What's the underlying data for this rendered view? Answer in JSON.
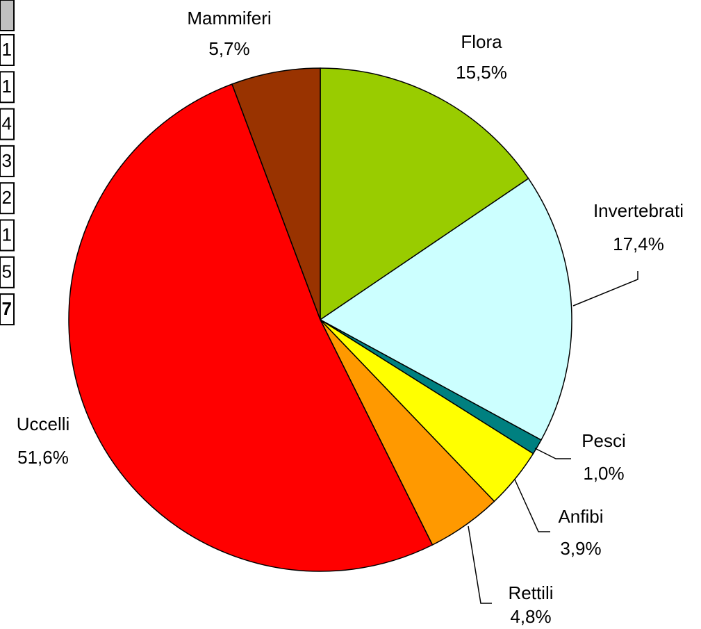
{
  "chart_data": {
    "type": "pie",
    "categories": [
      "Flora",
      "Invertebrati",
      "Pesci",
      "Anfibi",
      "Rettili",
      "Uccelli",
      "Mammiferi"
    ],
    "values": [
      15.5,
      17.4,
      1.0,
      3.9,
      4.8,
      51.6,
      5.7
    ],
    "value_labels": [
      "15,5%",
      "17,4%",
      "1,0%",
      "3,9%",
      "4,8%",
      "51,6%",
      "5,7%"
    ],
    "colors": [
      "#99cc00",
      "#ccffff",
      "#008080",
      "#ffff00",
      "#ff9900",
      "#ff0000",
      "#993300"
    ]
  },
  "table_fragment": {
    "cells": [
      "1",
      "1",
      "4",
      "3",
      "2",
      "1",
      "5",
      "7"
    ]
  }
}
